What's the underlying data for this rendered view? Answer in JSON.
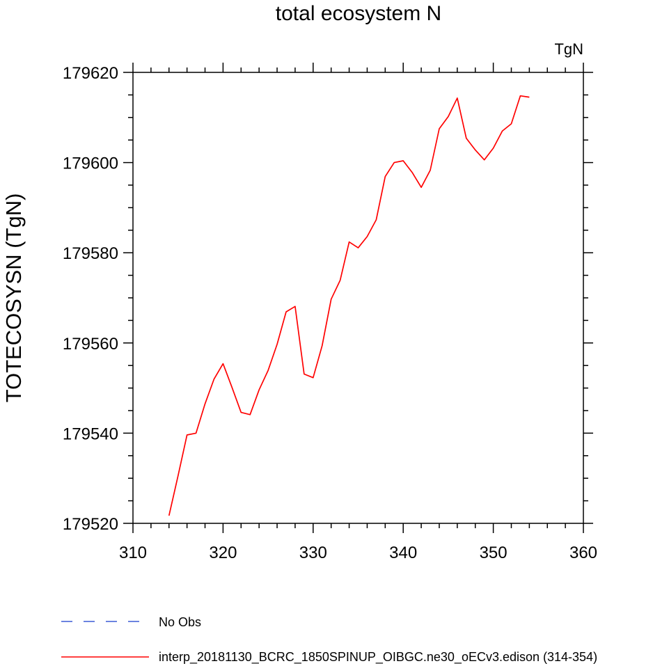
{
  "chart_data": {
    "type": "line",
    "title": "total ecosystem N",
    "units_label": "TgN",
    "ylabel": "TOTECOSYSN  (TgN)",
    "xlabel": "",
    "xlim": [
      310,
      360
    ],
    "ylim": [
      179520,
      179620
    ],
    "x_ticks": [
      310,
      320,
      330,
      340,
      350,
      360
    ],
    "y_ticks": [
      179520,
      179540,
      179560,
      179580,
      179600,
      179620
    ],
    "x_tick_labels": [
      "310",
      "320",
      "330",
      "340",
      "350",
      "360"
    ],
    "y_tick_labels": [
      "179520",
      "179540",
      "179560",
      "179580",
      "179600",
      "179620"
    ],
    "x_minor_step": 2,
    "y_minor_step": 5,
    "grid": false,
    "legend_position": "bottom-left",
    "series": [
      {
        "name": "No Obs",
        "color": "#3b5bd6",
        "dash": "dashed",
        "x": [],
        "y": []
      },
      {
        "name": "interp_20181130_BCRC_1850SPINUP_OIBGC.ne30_oECv3.edison (314-354)",
        "color": "#ff0000",
        "dash": "solid",
        "x": [
          314,
          315,
          316,
          317,
          318,
          319,
          320,
          321,
          322,
          323,
          324,
          325,
          326,
          327,
          328,
          329,
          330,
          331,
          332,
          333,
          334,
          335,
          336,
          337,
          338,
          339,
          340,
          341,
          342,
          343,
          344,
          345,
          346,
          347,
          348,
          349,
          350,
          351,
          352,
          353,
          354
        ],
        "y": [
          179521.7,
          179530.5,
          179539.6,
          179540.0,
          179546.5,
          179552.0,
          179555.4,
          179550.1,
          179544.6,
          179544.1,
          179549.6,
          179553.9,
          179559.7,
          179566.9,
          179568.1,
          179553.1,
          179552.3,
          179559.4,
          179569.7,
          179573.9,
          179582.4,
          179581.1,
          179583.6,
          179587.3,
          179596.9,
          179600.0,
          179600.4,
          179597.8,
          179594.5,
          179598.3,
          179607.5,
          179610.2,
          179614.3,
          179605.4,
          179602.8,
          179600.6,
          179603.2,
          179607.0,
          179608.6,
          179614.8,
          179614.5
        ]
      }
    ]
  }
}
